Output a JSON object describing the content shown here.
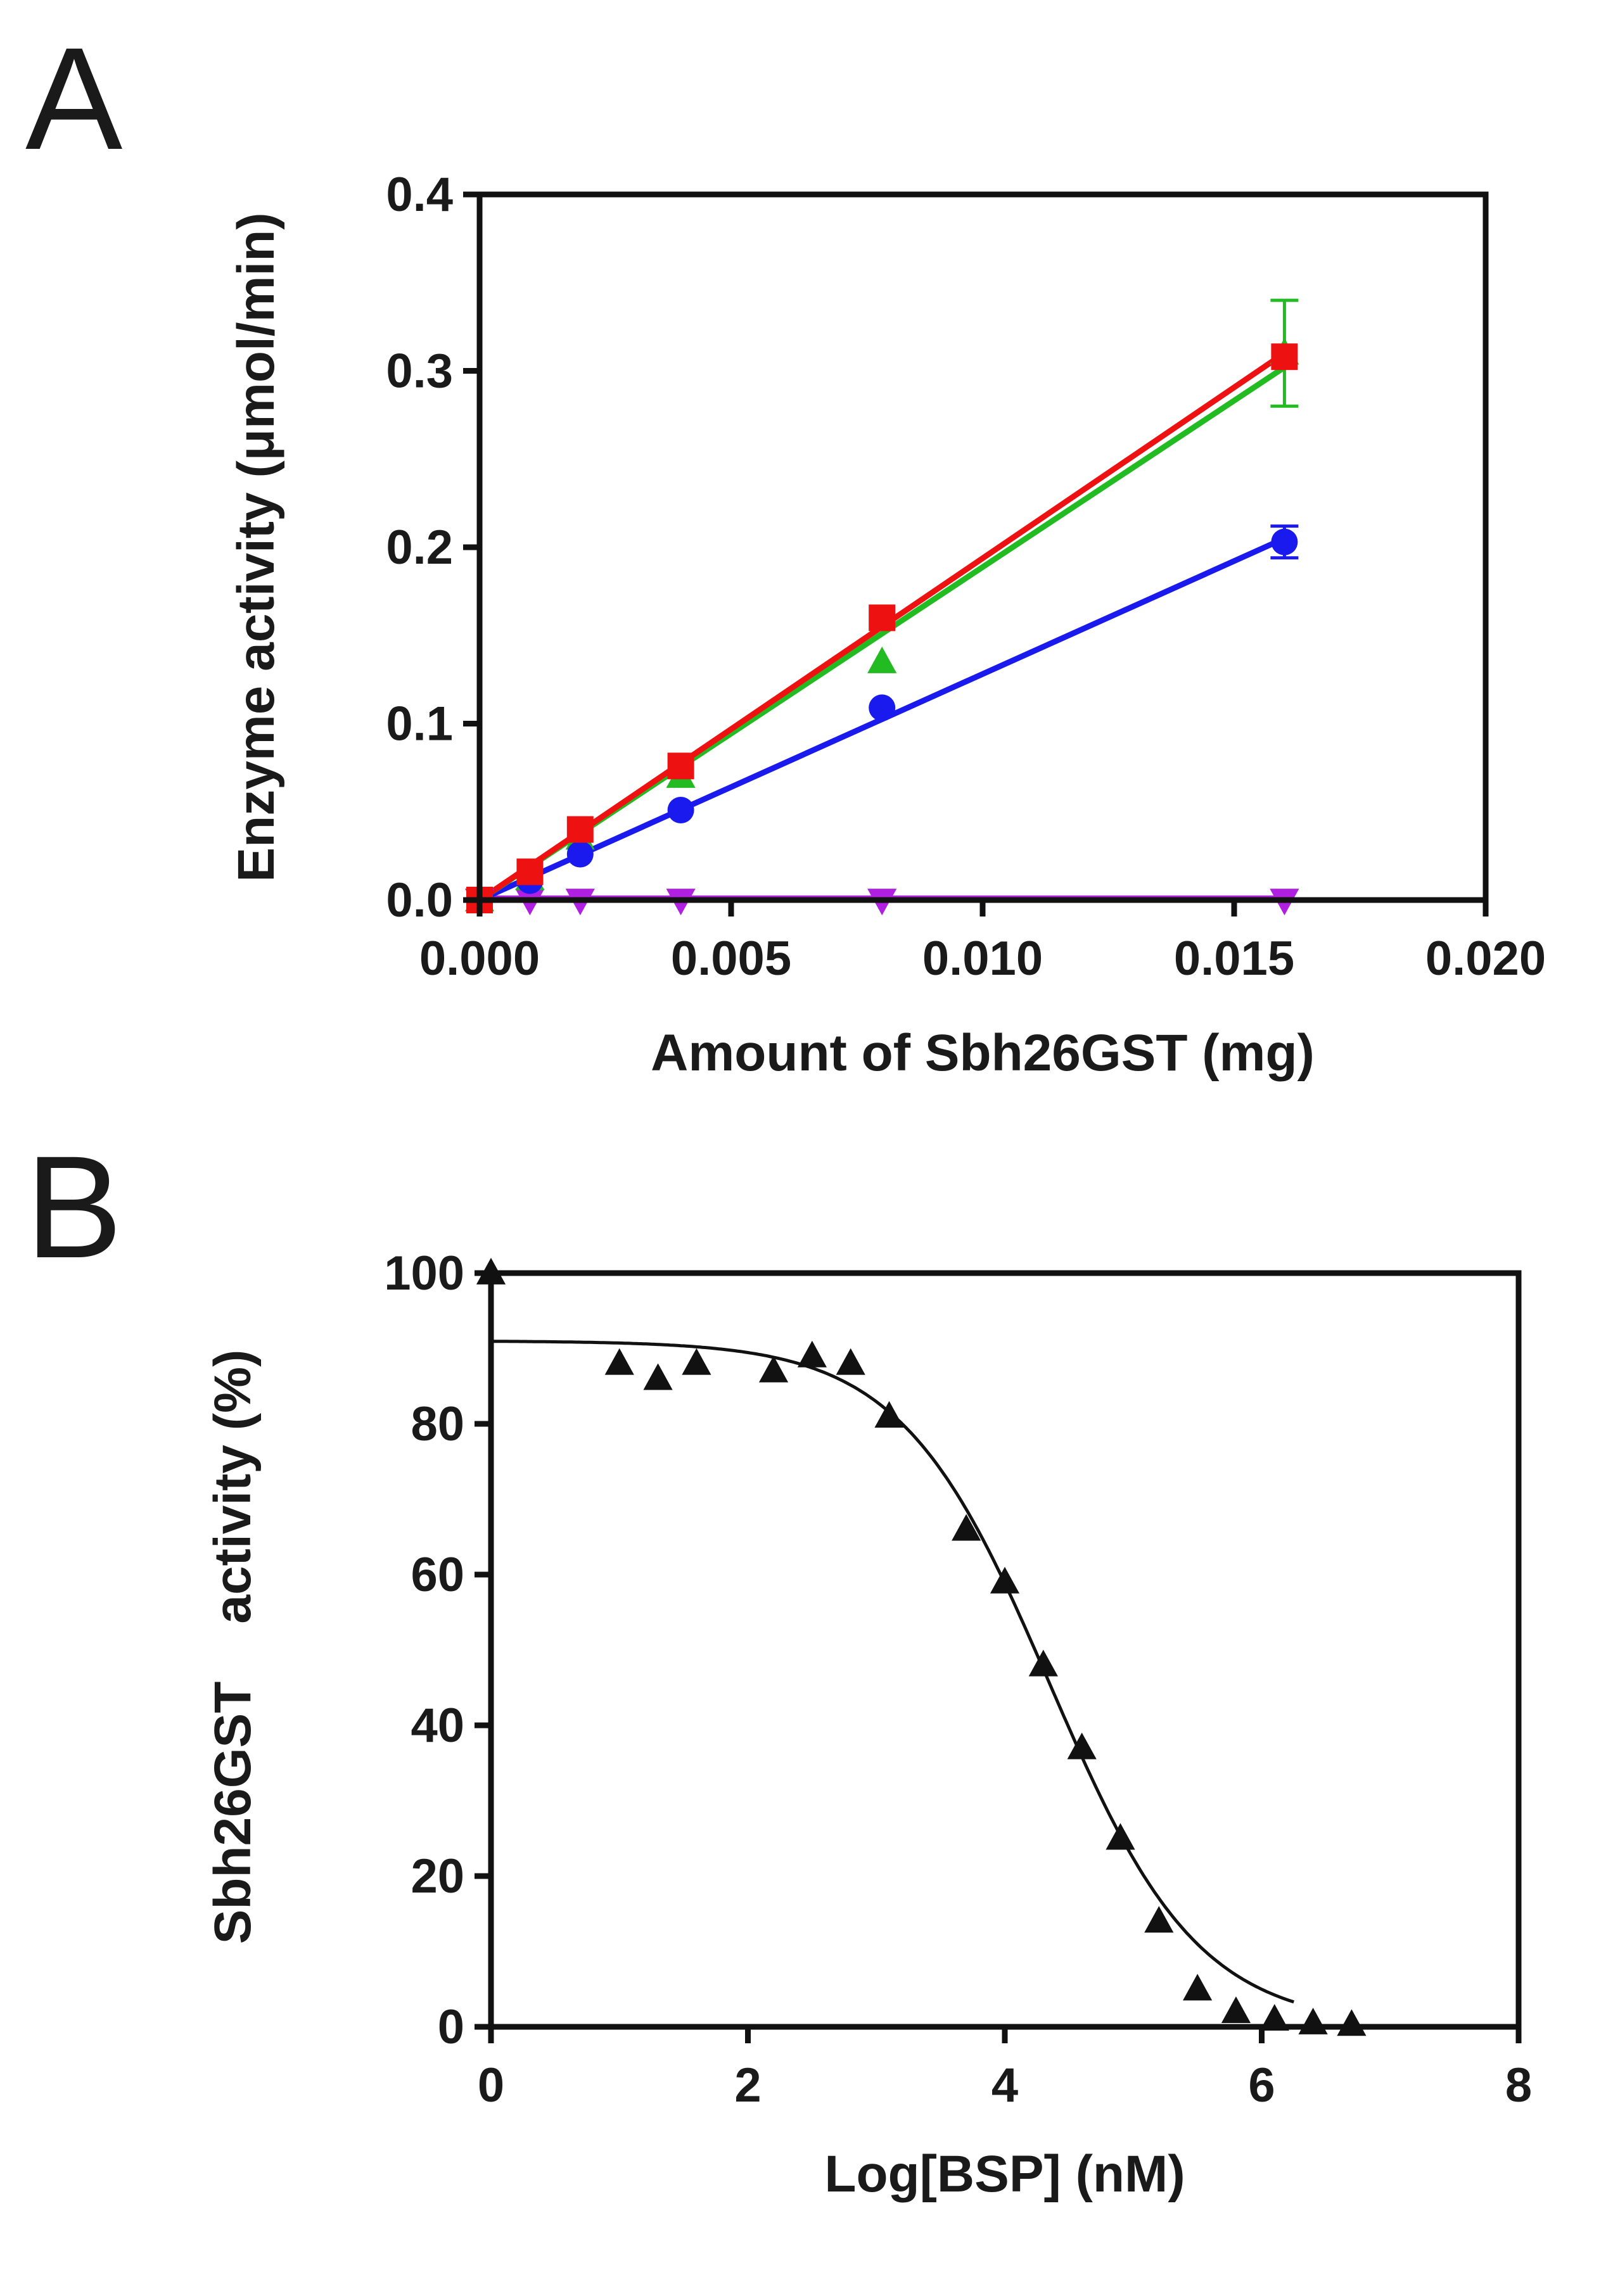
{
  "chart_data": [
    {
      "panel_label": "A",
      "type": "line",
      "xlabel": "Amount of Sbh26GST (mg)",
      "ylabel": "Enzyme activity (μmol/min)",
      "xlim": [
        0,
        0.02
      ],
      "ylim": [
        0,
        0.4
      ],
      "x_ticks": [
        0,
        0.005,
        0.01,
        0.015,
        0.02
      ],
      "x_tick_labels": [
        "0.000",
        "0.005",
        "0.010",
        "0.015",
        "0.020"
      ],
      "y_ticks": [
        0,
        0.1,
        0.2,
        0.3,
        0.4
      ],
      "y_tick_labels": [
        "0.0",
        "0.1",
        "0.2",
        "0.3",
        "0.4"
      ],
      "grid": false,
      "series": [
        {
          "name": "series-red-square",
          "color": "#ee1111",
          "marker": "square",
          "x": [
            0,
            0.001,
            0.002,
            0.004,
            0.008,
            0.016
          ],
          "y": [
            0,
            0.016,
            0.04,
            0.076,
            0.16,
            0.308
          ],
          "error": [
            0,
            0,
            0,
            0,
            0,
            0
          ],
          "fit": [
            [
              0,
              0
            ],
            [
              0.016,
              0.31
            ]
          ]
        },
        {
          "name": "series-green-triangle",
          "color": "#22bb22",
          "marker": "triangle-up",
          "x": [
            0,
            0.001,
            0.002,
            0.004,
            0.008,
            0.016
          ],
          "y": [
            0,
            0.012,
            0.035,
            0.07,
            0.135,
            0.31
          ],
          "error": [
            0,
            0,
            0,
            0,
            0,
            0.03
          ],
          "fit": [
            [
              0,
              0
            ],
            [
              0.016,
              0.302
            ]
          ]
        },
        {
          "name": "series-blue-circle",
          "color": "#1a1aee",
          "marker": "circle",
          "x": [
            0,
            0.001,
            0.002,
            0.004,
            0.008,
            0.016
          ],
          "y": [
            0,
            0.011,
            0.026,
            0.051,
            0.109,
            0.203
          ],
          "error": [
            0,
            0,
            0,
            0,
            0,
            0.009
          ],
          "fit": [
            [
              0,
              0
            ],
            [
              0.016,
              0.205
            ]
          ]
        },
        {
          "name": "series-purple-triangle-down",
          "color": "#b020e0",
          "marker": "triangle-down",
          "x": [
            0,
            0.001,
            0.002,
            0.004,
            0.008,
            0.016
          ],
          "y": [
            0,
            0,
            0,
            0,
            0,
            0
          ],
          "error": [
            0,
            0,
            0,
            0,
            0,
            0
          ],
          "fit": [
            [
              0,
              0.001
            ],
            [
              0.016,
              0.001
            ]
          ]
        }
      ]
    },
    {
      "panel_label": "B",
      "type": "scatter",
      "xlabel": "Log[BSP] (nM)",
      "ylabel": "Sbh26GST    activity (%)",
      "xlim": [
        0,
        8
      ],
      "ylim": [
        0,
        100
      ],
      "x_ticks": [
        0,
        2,
        4,
        6,
        8
      ],
      "x_tick_labels": [
        "0",
        "2",
        "4",
        "6",
        "8"
      ],
      "y_ticks": [
        0,
        20,
        40,
        60,
        80,
        100
      ],
      "y_tick_labels": [
        "0",
        "20",
        "40",
        "60",
        "80",
        "100"
      ],
      "grid": false,
      "series": [
        {
          "name": "series-black-triangle",
          "color": "#111111",
          "marker": "triangle-up",
          "x": [
            0,
            1.0,
            1.3,
            1.6,
            2.2,
            2.5,
            2.8,
            3.1,
            3.7,
            4.0,
            4.3,
            4.6,
            4.9,
            5.2,
            5.5,
            5.8,
            6.1,
            6.4,
            6.7
          ],
          "y": [
            100,
            88,
            86,
            88,
            87,
            89,
            88,
            81,
            66,
            59,
            48,
            37,
            25,
            14,
            5,
            2,
            1,
            0.5,
            0.3
          ]
        }
      ],
      "fit": {
        "model": "sigmoidal dose-response",
        "top": 91,
        "bottom": 0,
        "log_ic50": 4.35,
        "hill_slope": -0.75
      }
    }
  ]
}
